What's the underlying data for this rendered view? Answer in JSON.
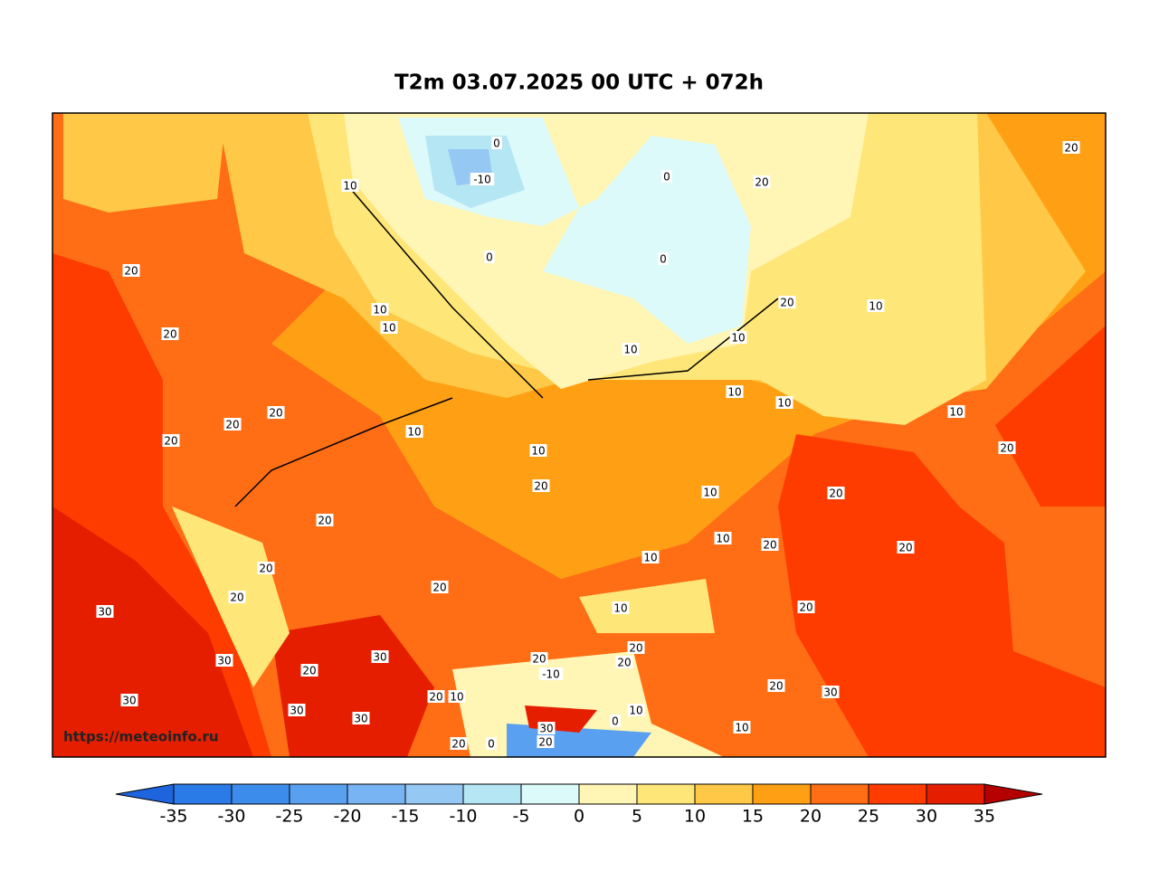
{
  "title": "T2m 03.07.2025 00 UTC + 072h",
  "watermark": "https://meteoinfo.ru",
  "colorbar": {
    "ticks": [
      -35,
      -30,
      -25,
      -20,
      -15,
      -10,
      -5,
      0,
      5,
      10,
      15,
      20,
      25,
      30,
      35
    ],
    "colors": [
      "#1e64dc",
      "#2a7ae8",
      "#3c8cec",
      "#5aa0f0",
      "#78b4f4",
      "#96c8f4",
      "#b4e6f4",
      "#dcfafa",
      "#fff5b4",
      "#ffe678",
      "#ffc846",
      "#ffa014",
      "#ff6e14",
      "#ff3c00",
      "#e61e00",
      "#b40000"
    ]
  },
  "contour_labels": [
    20,
    20,
    20,
    20,
    20,
    10,
    10,
    10,
    10,
    -10,
    0,
    0,
    0,
    0,
    20,
    20,
    10,
    10,
    10,
    10,
    10,
    10,
    20,
    10,
    10,
    20,
    10,
    20,
    20,
    20,
    10,
    10,
    20,
    20,
    20,
    20,
    20,
    30,
    30,
    30,
    20,
    30,
    30,
    30,
    20,
    10,
    20,
    -10,
    20,
    20,
    10,
    0,
    30,
    20,
    20,
    0,
    10,
    20,
    30,
    20
  ]
}
